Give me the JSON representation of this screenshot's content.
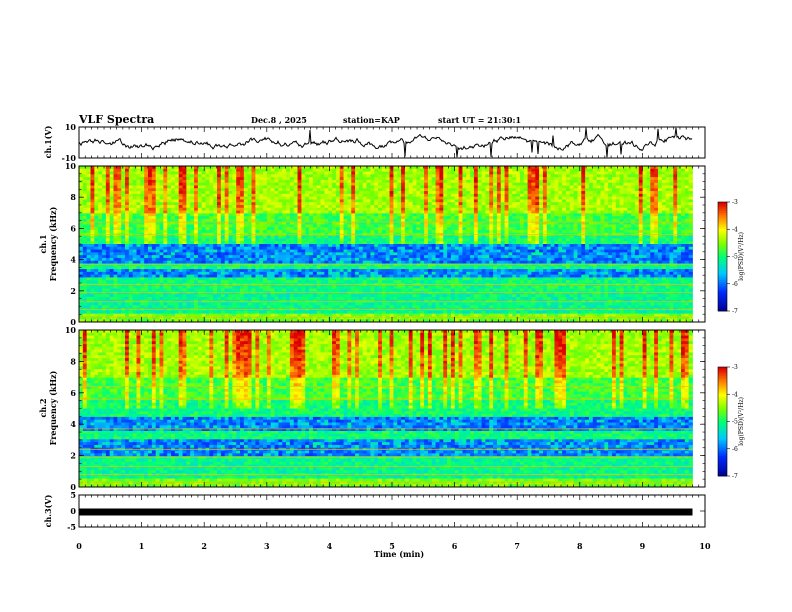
{
  "header": {
    "title": "VLF Spectra",
    "date": "Dec.8 , 2025",
    "station": "station=KAP",
    "start_ut": "start UT = 21:30:1"
  },
  "chart_data": [
    {
      "type": "line",
      "name": "ch1-waveform",
      "ylabel": "ch.1(V)",
      "ylim": [
        -10,
        10
      ],
      "yticks": [
        "10",
        "-10"
      ],
      "xlim": [
        0,
        10
      ],
      "description_values_note": "Noisy amplitude trace hovering near 0 V with peaks up to about +/-8 V"
    },
    {
      "type": "heatmap",
      "name": "ch1-spectrogram",
      "ylabel_top": "ch.1",
      "ylabel": "Frequency (kHz)",
      "ylim": [
        0,
        10
      ],
      "yticks": [
        "0",
        "2",
        "4",
        "6",
        "8",
        "10"
      ],
      "xlim": [
        0,
        9.8
      ],
      "blue_bands_khz": [
        [
          2.8,
          3.4
        ],
        [
          3.8,
          5.0
        ]
      ],
      "colorbar": {
        "label": "log(PSD)(V²/Hz)",
        "range": [
          -7,
          -3
        ],
        "ticks": [
          "-3",
          "-4",
          "-5",
          "-6",
          "-7"
        ]
      }
    },
    {
      "type": "heatmap",
      "name": "ch2-spectrogram",
      "ylabel_top": "ch.2",
      "ylabel": "Frequency (kHz)",
      "ylim": [
        0,
        10
      ],
      "yticks": [
        "0",
        "2",
        "4",
        "6",
        "8",
        "10"
      ],
      "xlim": [
        0,
        9.8
      ],
      "blue_bands_khz": [
        [
          2.0,
          3.0
        ],
        [
          3.6,
          4.4
        ]
      ],
      "colorbar": {
        "label": "log(PSD)(V²/Hz)",
        "range": [
          -7,
          -3
        ],
        "ticks": [
          "-3",
          "-4",
          "-5",
          "-6",
          "-7"
        ]
      }
    },
    {
      "type": "line",
      "name": "ch3-waveform",
      "ylabel": "ch.3(V)",
      "ylim": [
        -5,
        5
      ],
      "yticks": [
        "5",
        "0",
        "-5"
      ],
      "constant_value": -0.3,
      "xlim": [
        0,
        10
      ]
    }
  ],
  "xaxis": {
    "label": "Time (min)",
    "ticks": [
      "0",
      "1",
      "2",
      "3",
      "4",
      "5",
      "6",
      "7",
      "8",
      "9",
      "10"
    ],
    "range": [
      0,
      10
    ]
  },
  "colors": {
    "background": "#ffffff",
    "trace": "#000000"
  }
}
